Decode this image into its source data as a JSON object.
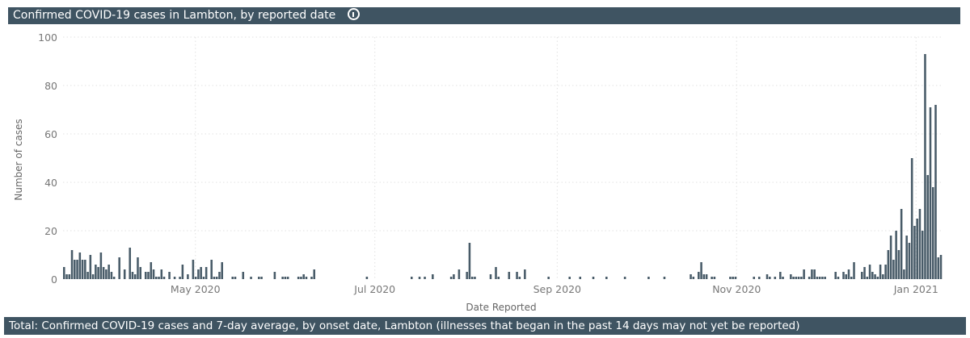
{
  "header": {
    "title": "Confirmed COVID-19 cases in Lambton, by reported date",
    "info_icon": "info-icon"
  },
  "footer": {
    "title": "Total: Confirmed COVID-19 cases and 7-day average, by onset date, Lambton (illnesses that began in the past 14 days may not yet be reported)"
  },
  "colors": {
    "header_bg": "#3f5462",
    "bar": "#485b68",
    "grid": "#e1e1e1",
    "axis_text": "#777777"
  },
  "chart_data": {
    "type": "bar",
    "title": "Confirmed COVID-19 cases in Lambton, by reported date",
    "xlabel": "Date Reported",
    "ylabel": "Number of cases",
    "ylim": [
      0,
      100
    ],
    "yticks": [
      0,
      20,
      40,
      60,
      80,
      100
    ],
    "xticks": [
      "May 2020",
      "Jul 2020",
      "Sep 2020",
      "Nov 2020",
      "Jan 2021"
    ],
    "grid": true,
    "legend": "none",
    "x_start": "2020-03-17",
    "x_end": "2021-01-09",
    "series": [
      {
        "name": "Confirmed cases",
        "note": "Daily values, estimated from bar heights; index 0 = 2020-03-17",
        "values": [
          5,
          2,
          2,
          12,
          8,
          8,
          11,
          8,
          8,
          3,
          10,
          2,
          6,
          5,
          11,
          5,
          4,
          6,
          3,
          1,
          0,
          9,
          0,
          4,
          0,
          13,
          3,
          2,
          9,
          5,
          0,
          3,
          3,
          7,
          4,
          1,
          1,
          4,
          1,
          0,
          3,
          0,
          1,
          0,
          1,
          6,
          0,
          2,
          0,
          8,
          1,
          4,
          5,
          1,
          5,
          0,
          8,
          1,
          1,
          3,
          7,
          0,
          0,
          0,
          1,
          1,
          0,
          0,
          3,
          0,
          0,
          1,
          0,
          0,
          1,
          1,
          0,
          0,
          0,
          0,
          3,
          0,
          0,
          1,
          1,
          1,
          0,
          0,
          0,
          1,
          1,
          2,
          1,
          0,
          1,
          4,
          0,
          0,
          0,
          0,
          0,
          0,
          0,
          0,
          0,
          0,
          0,
          0,
          0,
          0,
          0,
          0,
          0,
          0,
          0,
          1,
          0,
          0,
          0,
          0,
          0,
          0,
          0,
          0,
          0,
          0,
          0,
          0,
          0,
          0,
          0,
          0,
          1,
          0,
          0,
          1,
          0,
          1,
          0,
          0,
          2,
          0,
          0,
          0,
          0,
          0,
          0,
          1,
          2,
          0,
          4,
          0,
          0,
          3,
          15,
          1,
          1,
          0,
          0,
          0,
          0,
          0,
          2,
          0,
          5,
          1,
          0,
          0,
          0,
          3,
          0,
          0,
          3,
          1,
          0,
          4,
          0,
          0,
          0,
          0,
          0,
          0,
          0,
          0,
          1,
          0,
          0,
          0,
          0,
          0,
          0,
          0,
          1,
          0,
          0,
          0,
          1,
          0,
          0,
          0,
          0,
          1,
          0,
          0,
          0,
          0,
          1,
          0,
          0,
          0,
          0,
          0,
          0,
          1,
          0,
          0,
          0,
          0,
          0,
          0,
          0,
          0,
          1,
          0,
          0,
          0,
          0,
          0,
          1,
          0,
          0,
          0,
          0,
          0,
          0,
          0,
          0,
          0,
          2,
          1,
          0,
          3,
          7,
          2,
          2,
          0,
          1,
          1,
          0,
          0,
          0,
          0,
          0,
          1,
          1,
          1,
          0,
          0,
          0,
          0,
          0,
          0,
          1,
          0,
          1,
          0,
          0,
          2,
          1,
          0,
          1,
          0,
          3,
          1,
          0,
          0,
          2,
          1,
          1,
          1,
          1,
          4,
          0,
          1,
          4,
          4,
          1,
          1,
          1,
          1,
          0,
          0,
          0,
          3,
          1,
          0,
          3,
          2,
          4,
          1,
          7,
          0,
          0,
          3,
          5,
          1,
          6,
          3,
          2,
          1,
          6,
          2,
          6,
          12,
          18,
          8,
          20,
          12,
          29,
          4,
          18,
          15,
          50,
          22,
          25,
          29,
          20,
          93,
          43,
          71,
          38,
          72,
          9,
          10
        ]
      }
    ]
  }
}
